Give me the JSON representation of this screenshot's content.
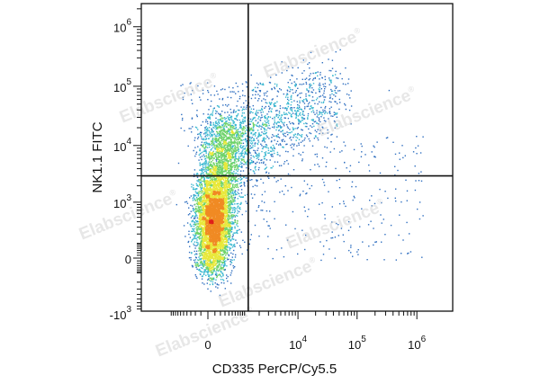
{
  "chart_data": {
    "type": "scatter",
    "subtype": "flow-cytometry density dot plot (biexponential axes)",
    "xlabel": "CD335 PerCP/Cy5.5",
    "ylabel": "NK1.1 FITC",
    "x_ticks": [
      {
        "base": "0",
        "exp": ""
      },
      {
        "base": "10",
        "exp": "4"
      },
      {
        "base": "10",
        "exp": "5"
      },
      {
        "base": "10",
        "exp": "6"
      }
    ],
    "y_ticks": [
      {
        "base": "-10",
        "exp": "3"
      },
      {
        "base": "0",
        "exp": ""
      },
      {
        "base": "10",
        "exp": "3"
      },
      {
        "base": "10",
        "exp": "4"
      },
      {
        "base": "10",
        "exp": "5"
      },
      {
        "base": "10",
        "exp": "6"
      }
    ],
    "gate_lines": {
      "x": 1200,
      "y": 3000
    },
    "population": {
      "center": {
        "x": 0,
        "y": 900
      },
      "description": "dense NK1.1-low / CD335-negative core with a tail extending to NK1.1+ CD335+ region (up to ~3e4 on x, ~1.5e5 on y)"
    },
    "density_colors": [
      "#2a2f8f",
      "#2f6fc0",
      "#38b7d0",
      "#6fd36a",
      "#e8e83a",
      "#f08a24",
      "#e0201a"
    ],
    "grid": false,
    "watermark": "Elabscience",
    "watermark_mark": "®"
  }
}
